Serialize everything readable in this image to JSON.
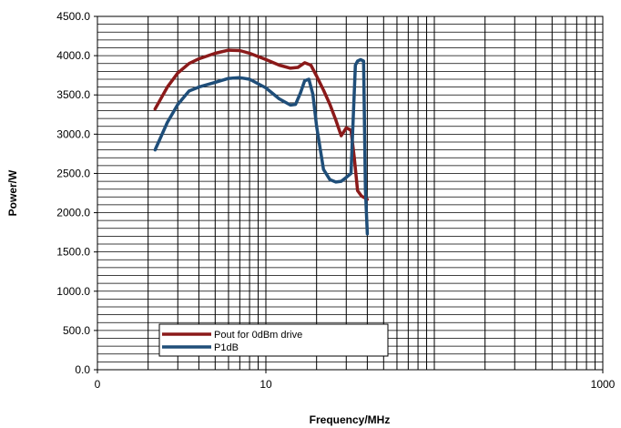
{
  "chart_data": {
    "type": "line",
    "title": "",
    "xlabel": "Frequency/MHz",
    "ylabel": "Power/W",
    "xscale": "log",
    "xlim": [
      1,
      1000
    ],
    "ylim": [
      0,
      4500
    ],
    "grid": true,
    "legend_position": "bottom-left",
    "x_tick_labels": [
      "0",
      "10",
      "1000"
    ],
    "y_tick_labels": [
      "0.0",
      "500.0",
      "1000.0",
      "1500.0",
      "2000.0",
      "2500.0",
      "3000.0",
      "3500.0",
      "4000.0",
      "4500.0"
    ],
    "series": [
      {
        "name": "Pout for 0dBm drive",
        "color": "#8b1a1a",
        "x": [
          2.2,
          2.6,
          3.0,
          3.5,
          4.0,
          5.0,
          6.0,
          7.0,
          8.0,
          10.0,
          12.0,
          14.0,
          15.5,
          17.0,
          18.5,
          20.0,
          22.0,
          24.0,
          26.0,
          28.0,
          30.0,
          32.0,
          33.5,
          35.0,
          37.0,
          40.0
        ],
        "y": [
          3320,
          3600,
          3780,
          3900,
          3960,
          4030,
          4070,
          4065,
          4030,
          3950,
          3880,
          3840,
          3850,
          3910,
          3880,
          3740,
          3560,
          3380,
          3180,
          2980,
          3080,
          3050,
          2700,
          2280,
          2210,
          2170
        ]
      },
      {
        "name": "P1dB",
        "color": "#1f4e79",
        "x": [
          2.2,
          2.6,
          3.0,
          3.5,
          4.0,
          5.0,
          6.0,
          7.0,
          8.0,
          10.0,
          12.0,
          14.0,
          15.0,
          16.0,
          17.0,
          18.0,
          19.0,
          20.0,
          22.0,
          24.0,
          26.0,
          28.0,
          30.0,
          32.0,
          33.0,
          34.0,
          35.0,
          36.5,
          38.0,
          39.0,
          40.0
        ],
        "y": [
          2800,
          3150,
          3380,
          3550,
          3600,
          3660,
          3710,
          3720,
          3700,
          3590,
          3450,
          3370,
          3380,
          3520,
          3680,
          3700,
          3510,
          3100,
          2550,
          2420,
          2390,
          2400,
          2450,
          2500,
          3200,
          3880,
          3930,
          3950,
          3930,
          2300,
          1730
        ]
      }
    ]
  }
}
